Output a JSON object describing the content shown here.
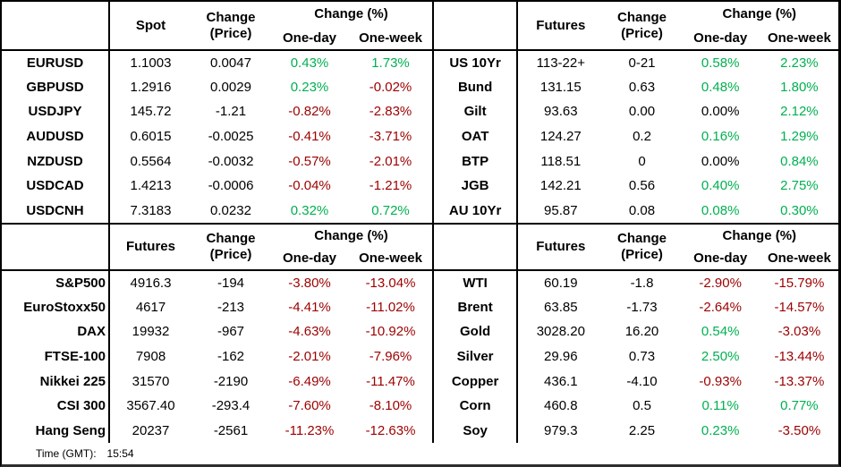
{
  "colors": {
    "positive": "#00B050",
    "negative": "#9C0000",
    "neutral": "#000000"
  },
  "footer": {
    "label": "Time (GMT):",
    "time": "15:54"
  },
  "chart_data": [
    {
      "type": "table",
      "id": "fx-spot",
      "price_col": "Spot",
      "change_col_top": "Change",
      "change_col_bottom": "(Price)",
      "pct_col": "Change (%)",
      "subcols": [
        "One-day",
        "One-week"
      ],
      "rows": [
        [
          "EURUSD",
          "1.1003",
          "0.0047",
          "0.43%",
          "1.73%"
        ],
        [
          "GBPUSD",
          "1.2916",
          "0.0029",
          "0.23%",
          "-0.02%"
        ],
        [
          "USDJPY",
          "145.72",
          "-1.21",
          "-0.82%",
          "-2.83%"
        ],
        [
          "AUDUSD",
          "0.6015",
          "-0.0025",
          "-0.41%",
          "-3.71%"
        ],
        [
          "NZDUSD",
          "0.5564",
          "-0.0032",
          "-0.57%",
          "-2.01%"
        ],
        [
          "USDCAD",
          "1.4213",
          "-0.0006",
          "-0.04%",
          "-1.21%"
        ],
        [
          "USDCNH",
          "7.3183",
          "0.0232",
          "0.32%",
          "0.72%"
        ]
      ]
    },
    {
      "type": "table",
      "id": "bond-futures",
      "price_col": "Futures",
      "change_col_top": "Change",
      "change_col_bottom": "(Price)",
      "pct_col": "Change (%)",
      "subcols": [
        "One-day",
        "One-week"
      ],
      "rows": [
        [
          "US 10Yr",
          "113-22+",
          "0-21",
          "0.58%",
          "2.23%"
        ],
        [
          "Bund",
          "131.15",
          "0.63",
          "0.48%",
          "1.80%"
        ],
        [
          "Gilt",
          "93.63",
          "0.00",
          "0.00%",
          "2.12%"
        ],
        [
          "OAT",
          "124.27",
          "0.2",
          "0.16%",
          "1.29%"
        ],
        [
          "BTP",
          "118.51",
          "0",
          "0.00%",
          "0.84%"
        ],
        [
          "JGB",
          "142.21",
          "0.56",
          "0.40%",
          "2.75%"
        ],
        [
          "AU 10Yr",
          "95.87",
          "0.08",
          "0.08%",
          "0.30%"
        ]
      ]
    },
    {
      "type": "table",
      "id": "equity-futures",
      "price_col": "Futures",
      "change_col_top": "Change",
      "change_col_bottom": "(Price)",
      "pct_col": "Change (%)",
      "subcols": [
        "One-day",
        "One-week"
      ],
      "rows": [
        [
          "S&P500",
          "4916.3",
          "-194",
          "-3.80%",
          "-13.04%"
        ],
        [
          "EuroStoxx50",
          "4617",
          "-213",
          "-4.41%",
          "-11.02%"
        ],
        [
          "DAX",
          "19932",
          "-967",
          "-4.63%",
          "-10.92%"
        ],
        [
          "FTSE-100",
          "7908",
          "-162",
          "-2.01%",
          "-7.96%"
        ],
        [
          "Nikkei 225",
          "31570",
          "-2190",
          "-6.49%",
          "-11.47%"
        ],
        [
          "CSI 300",
          "3567.40",
          "-293.4",
          "-7.60%",
          "-8.10%"
        ],
        [
          "Hang Seng",
          "20237",
          "-2561",
          "-11.23%",
          "-12.63%"
        ]
      ]
    },
    {
      "type": "table",
      "id": "commodity-futures",
      "price_col": "Futures",
      "change_col_top": "Change",
      "change_col_bottom": "(Price)",
      "pct_col": "Change (%)",
      "subcols": [
        "One-day",
        "One-week"
      ],
      "rows": [
        [
          "WTI",
          "60.19",
          "-1.8",
          "-2.90%",
          "-15.79%"
        ],
        [
          "Brent",
          "63.85",
          "-1.73",
          "-2.64%",
          "-14.57%"
        ],
        [
          "Gold",
          "3028.20",
          "16.20",
          "0.54%",
          "-3.03%"
        ],
        [
          "Silver",
          "29.96",
          "0.73",
          "2.50%",
          "-13.44%"
        ],
        [
          "Copper",
          "436.1",
          "-4.10",
          "-0.93%",
          "-13.37%"
        ],
        [
          "Corn",
          "460.8",
          "0.5",
          "0.11%",
          "0.77%"
        ],
        [
          "Soy",
          "979.3",
          "2.25",
          "0.23%",
          "-3.50%"
        ]
      ]
    }
  ]
}
